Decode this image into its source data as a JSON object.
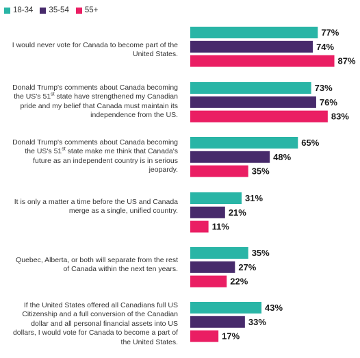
{
  "chart_data": {
    "type": "bar",
    "orientation": "horizontal",
    "title": "",
    "xlabel": "",
    "ylabel": "",
    "xlim": [
      0,
      100
    ],
    "grid": false,
    "legend_position": "top-left",
    "value_suffix": "%",
    "categories": [
      "I would never vote for Canada to become part of the United States.",
      "Donald Trump's comments about Canada becoming the US's 51st state have strengthened my Canadian pride and my belief that Canada must maintain its independence from the US.",
      "Donald Trump's comments about Canada becoming the US's 51st state make me think that Canada's future as an independent country is in serious jeopardy.",
      "It is only a matter a time before the US and Canada merge as a single, unified country.",
      "Quebec, Alberta, or both will separate from the rest of Canada within the next ten years.",
      "If the United States offered all Canadians full US Citizenship and a full conversion of the Canadian dollar and all personal financial assets into US dollars, I would vote for Canada to become a part of the United States."
    ],
    "series": [
      {
        "name": "18-34",
        "color": "#29b5a6",
        "values": [
          77,
          73,
          65,
          31,
          35,
          43
        ]
      },
      {
        "name": "35-54",
        "color": "#472a6b",
        "values": [
          74,
          76,
          48,
          21,
          27,
          33
        ]
      },
      {
        "name": "55+",
        "color": "#ea1e63",
        "values": [
          87,
          83,
          35,
          11,
          22,
          17
        ]
      }
    ]
  }
}
